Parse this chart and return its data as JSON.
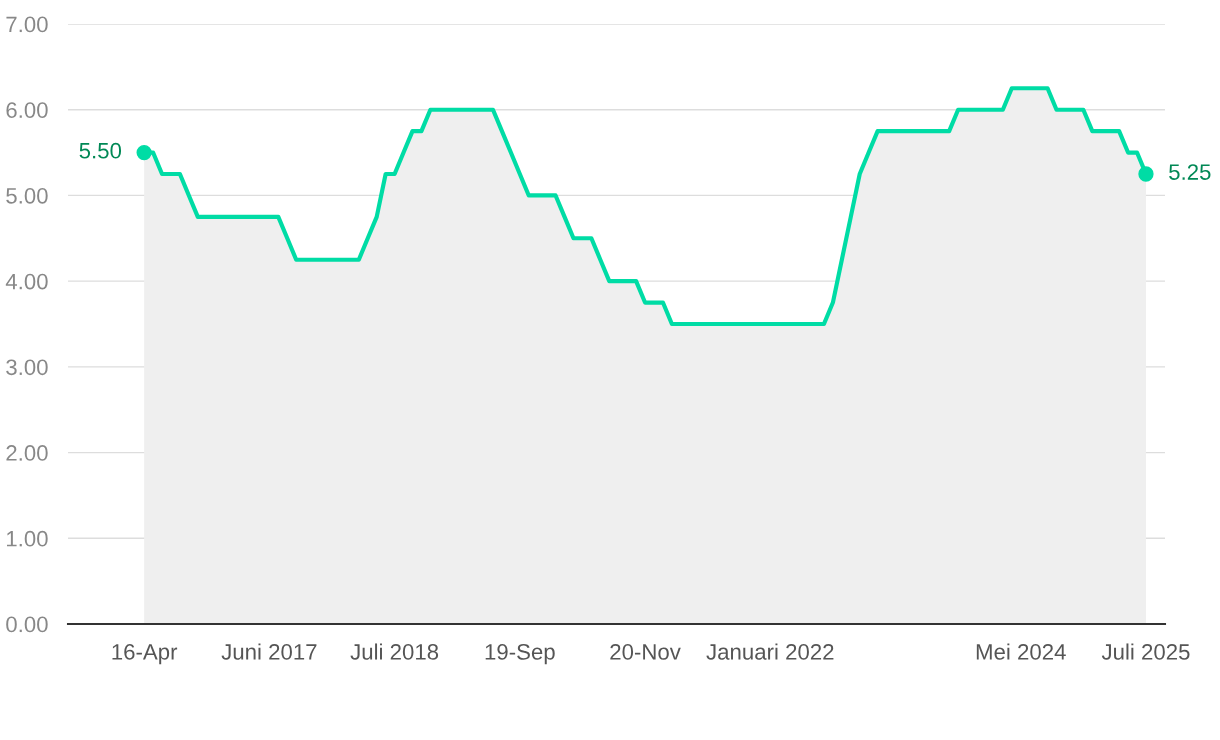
{
  "chart_data": {
    "type": "area",
    "categories": [
      "16-Apr",
      null,
      null,
      null,
      null,
      null,
      null,
      null,
      null,
      null,
      null,
      null,
      null,
      null,
      "Juni 2017",
      null,
      null,
      null,
      null,
      null,
      null,
      null,
      null,
      null,
      null,
      null,
      null,
      null,
      "Juli 2018",
      null,
      null,
      null,
      null,
      null,
      null,
      null,
      null,
      null,
      null,
      null,
      null,
      null,
      "19-Sep",
      null,
      null,
      null,
      null,
      null,
      null,
      null,
      null,
      null,
      null,
      null,
      null,
      null,
      "20-Nov",
      null,
      null,
      null,
      null,
      null,
      null,
      null,
      null,
      null,
      null,
      null,
      null,
      null,
      "Januari 2022",
      null,
      null,
      null,
      null,
      null,
      null,
      null,
      null,
      null,
      null,
      null,
      null,
      null,
      null,
      null,
      null,
      null,
      null,
      null,
      null,
      null,
      null,
      null,
      null,
      null,
      null,
      null,
      "Mei 2024",
      null,
      null,
      null,
      null,
      null,
      null,
      null,
      null,
      null,
      null,
      null,
      null,
      null,
      "Juli 2025"
    ],
    "series": [
      {
        "color": "#00dca5",
        "values": [
          5.5,
          5.5,
          5.25,
          5.25,
          5.25,
          5.0,
          4.75,
          4.75,
          4.75,
          4.75,
          4.75,
          4.75,
          4.75,
          4.75,
          4.75,
          4.75,
          4.5,
          4.25,
          4.25,
          4.25,
          4.25,
          4.25,
          4.25,
          4.25,
          4.25,
          4.5,
          4.75,
          5.25,
          5.25,
          5.5,
          5.75,
          5.75,
          6.0,
          6.0,
          6.0,
          6.0,
          6.0,
          6.0,
          6.0,
          6.0,
          5.75,
          5.5,
          5.25,
          5.0,
          5.0,
          5.0,
          5.0,
          4.75,
          4.5,
          4.5,
          4.5,
          4.25,
          4.0,
          4.0,
          4.0,
          4.0,
          3.75,
          3.75,
          3.75,
          3.5,
          3.5,
          3.5,
          3.5,
          3.5,
          3.5,
          3.5,
          3.5,
          3.5,
          3.5,
          3.5,
          3.5,
          3.5,
          3.5,
          3.5,
          3.5,
          3.5,
          3.5,
          3.75,
          4.25,
          4.75,
          5.25,
          5.5,
          5.75,
          5.75,
          5.75,
          5.75,
          5.75,
          5.75,
          5.75,
          5.75,
          5.75,
          6.0,
          6.0,
          6.0,
          6.0,
          6.0,
          6.0,
          6.25,
          6.25,
          6.25,
          6.25,
          6.25,
          6.0,
          6.0,
          6.0,
          6.0,
          5.75,
          5.75,
          5.75,
          5.75,
          5.5,
          5.5,
          5.25
        ]
      }
    ],
    "ylim": [
      0,
      7
    ],
    "yticks": [
      {
        "value": 0,
        "label": "0.00"
      },
      {
        "value": 1,
        "label": "1.00"
      },
      {
        "value": 2,
        "label": "2.00"
      },
      {
        "value": 3,
        "label": "3.00"
      },
      {
        "value": 4,
        "label": "4.00"
      },
      {
        "value": 5,
        "label": "5.00"
      },
      {
        "value": 6,
        "label": "6.00"
      },
      {
        "value": 7,
        "label": "7.00"
      }
    ],
    "grid": "y",
    "annotations": [
      {
        "text": "5.50",
        "x": "16-Apr",
        "y": 5.5
      },
      {
        "text": "5.25",
        "x": "Juli 2025",
        "y": 5.25
      }
    ]
  }
}
